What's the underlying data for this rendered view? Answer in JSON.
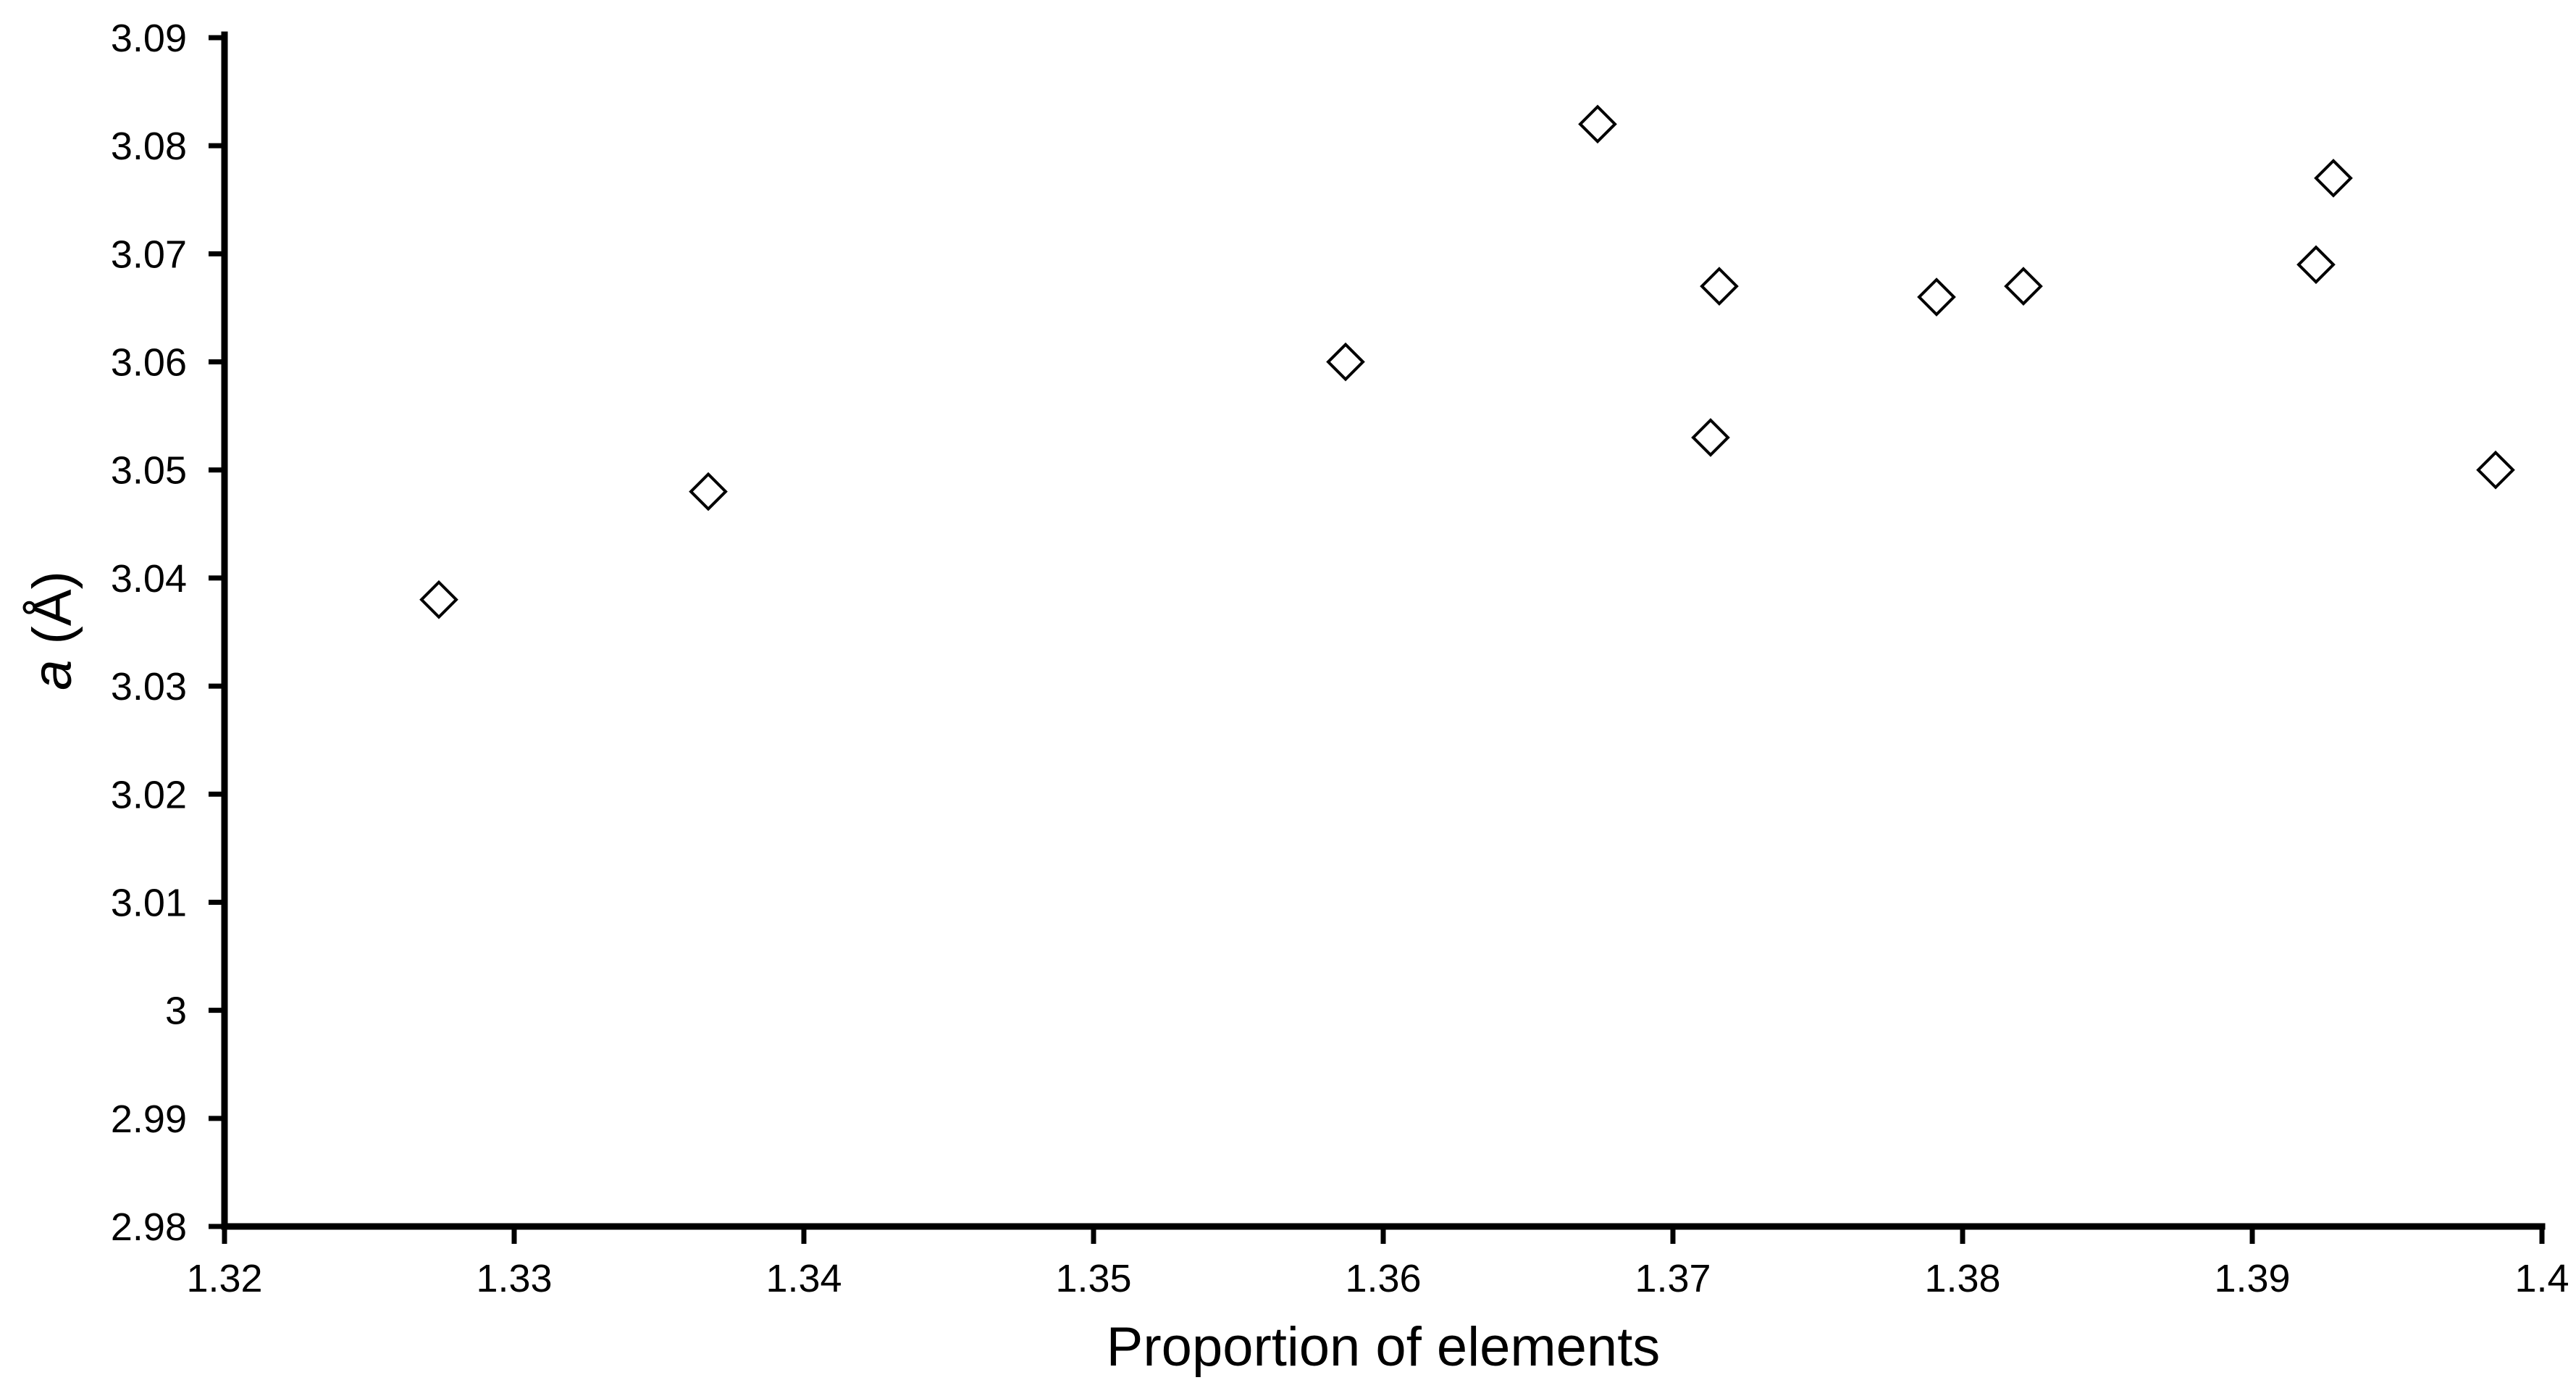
{
  "chart_data": {
    "type": "scatter",
    "title": "",
    "xlabel": "Proportion of elements",
    "ylabel_italic": "a",
    "ylabel_unit": " (Å)",
    "xlim": [
      1.32,
      1.4
    ],
    "ylim": [
      2.98,
      3.09
    ],
    "grid": false,
    "legend": "none",
    "marker": "open-diamond",
    "x_ticks": [
      {
        "value": 1.32,
        "label": "1.32"
      },
      {
        "value": 1.33,
        "label": "1.33"
      },
      {
        "value": 1.34,
        "label": "1.34"
      },
      {
        "value": 1.35,
        "label": "1.35"
      },
      {
        "value": 1.36,
        "label": "1.36"
      },
      {
        "value": 1.37,
        "label": "1.37"
      },
      {
        "value": 1.38,
        "label": "1.38"
      },
      {
        "value": 1.39,
        "label": "1.39"
      },
      {
        "value": 1.4,
        "label": "1.4"
      }
    ],
    "y_ticks": [
      {
        "value": 2.98,
        "label": "2.98"
      },
      {
        "value": 2.99,
        "label": "2.99"
      },
      {
        "value": 3.0,
        "label": "3"
      },
      {
        "value": 3.01,
        "label": "3.01"
      },
      {
        "value": 3.02,
        "label": "3.02"
      },
      {
        "value": 3.03,
        "label": "3.03"
      },
      {
        "value": 3.04,
        "label": "3.04"
      },
      {
        "value": 3.05,
        "label": "3.05"
      },
      {
        "value": 3.06,
        "label": "3.06"
      },
      {
        "value": 3.07,
        "label": "3.07"
      },
      {
        "value": 3.08,
        "label": "3.08"
      },
      {
        "value": 3.09,
        "label": "3.09"
      }
    ],
    "series": [
      {
        "points": [
          {
            "x": 1.3274,
            "y": 3.038
          },
          {
            "x": 1.3367,
            "y": 3.048
          },
          {
            "x": 1.3587,
            "y": 3.06
          },
          {
            "x": 1.3674,
            "y": 3.082
          },
          {
            "x": 1.3713,
            "y": 3.053
          },
          {
            "x": 1.3716,
            "y": 3.067
          },
          {
            "x": 1.3791,
            "y": 3.066
          },
          {
            "x": 1.3821,
            "y": 3.067
          },
          {
            "x": 1.3922,
            "y": 3.069
          },
          {
            "x": 1.3928,
            "y": 3.077
          },
          {
            "x": 1.3984,
            "y": 3.05
          }
        ]
      }
    ]
  }
}
